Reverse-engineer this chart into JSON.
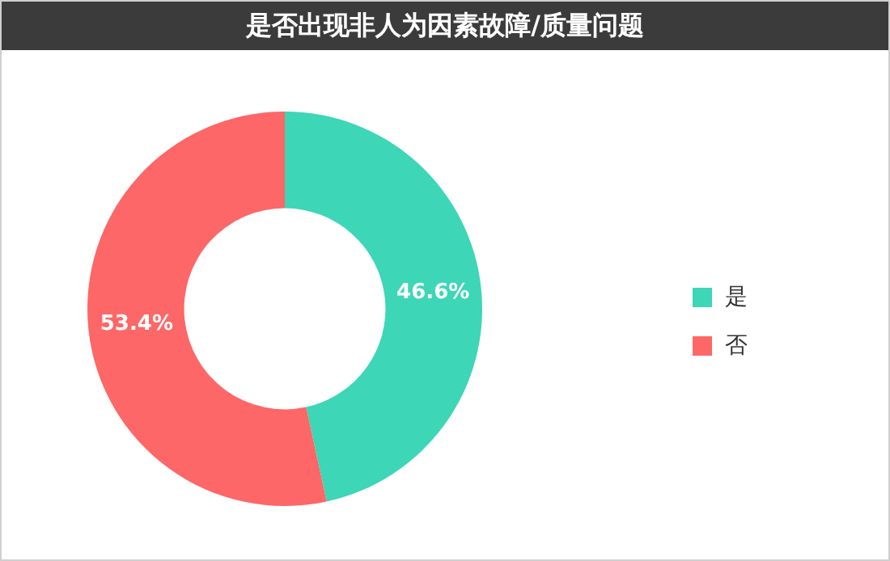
{
  "chart_data": {
    "type": "donut",
    "title": "是否出现非人为因素故障/质量问题",
    "categories": [
      "是",
      "否"
    ],
    "values": [
      46.6,
      53.4
    ],
    "colors": [
      "#3dd6b6",
      "#fd6767"
    ],
    "value_labels": [
      "46.6%",
      "53.4%"
    ],
    "legend": "right"
  }
}
